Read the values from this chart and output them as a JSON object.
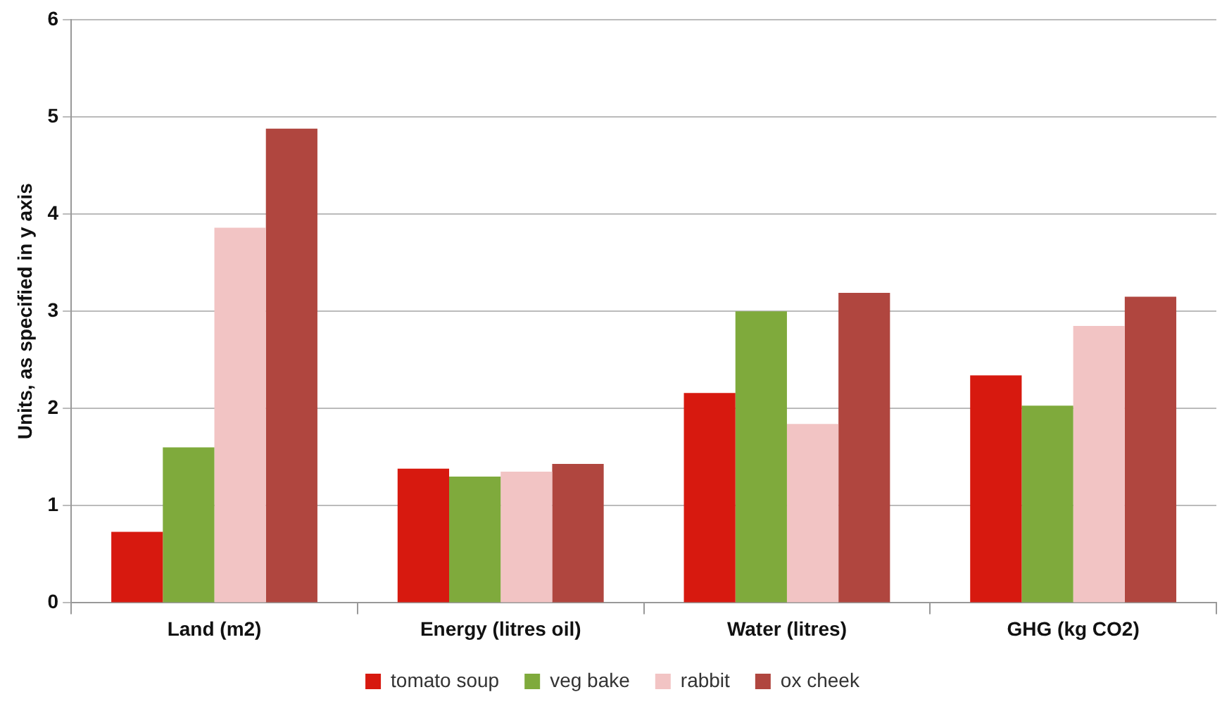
{
  "chart_data": {
    "type": "bar",
    "ylabel": "Units, as specified in y axis",
    "categories": [
      "Land (m2)",
      "Energy (litres oil)",
      "Water (litres)",
      "GHG (kg CO2)"
    ],
    "series": [
      {
        "name": "tomato soup",
        "color": "#d7190f",
        "values": [
          0.73,
          1.38,
          2.16,
          2.34
        ]
      },
      {
        "name": "veg bake",
        "color": "#7faa3c",
        "values": [
          1.6,
          1.3,
          3.0,
          2.03
        ]
      },
      {
        "name": "rabbit",
        "color": "#f2c4c4",
        "values": [
          3.86,
          1.35,
          1.84,
          2.85
        ]
      },
      {
        "name": "ox cheek",
        "color": "#b0463f",
        "values": [
          4.88,
          1.43,
          3.19,
          3.15
        ]
      }
    ],
    "ylim": [
      0,
      6
    ],
    "yticks": [
      0,
      1,
      2,
      3,
      4,
      5,
      6
    ],
    "grid": "y",
    "legend": "bottom"
  }
}
